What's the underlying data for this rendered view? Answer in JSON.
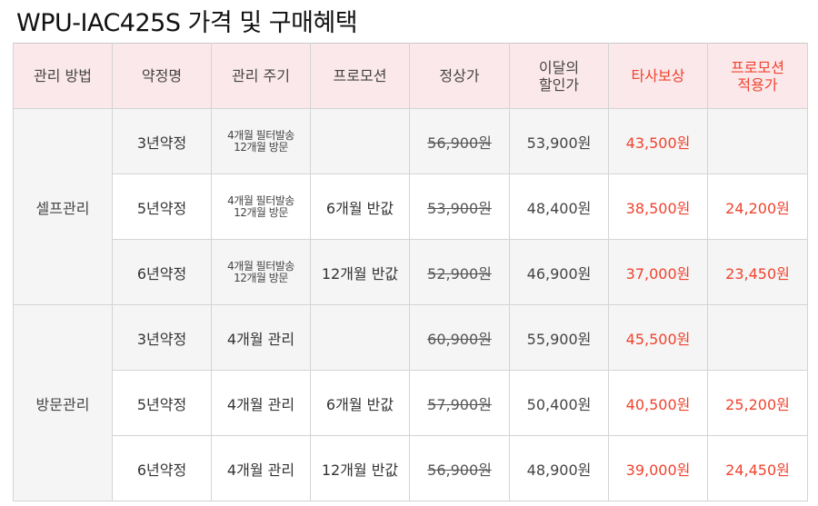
{
  "title": "WPU-IAC425S 가격 및 구매혜택",
  "colors": {
    "accent_red": "#f0432f",
    "header_bg": "#fbe8ea",
    "row_alt_bg": "#f5f5f5"
  },
  "headers": [
    {
      "lines": [
        "관리 방법"
      ]
    },
    {
      "lines": [
        "약정명"
      ]
    },
    {
      "lines": [
        "관리 주기"
      ]
    },
    {
      "lines": [
        "프로모션"
      ]
    },
    {
      "lines": [
        "정상가"
      ]
    },
    {
      "lines": [
        "이달의",
        "할인가"
      ]
    },
    {
      "lines": [
        "타사보상"
      ]
    },
    {
      "lines": [
        "프로모션",
        "적용가"
      ]
    }
  ],
  "groups": [
    {
      "method": "셀프관리",
      "rows": [
        {
          "contract": "3년약정",
          "cycle": [
            "4개월 필터발송",
            "12개월 방문"
          ],
          "promo": "",
          "original": "56,900원",
          "discount": "53,900원",
          "competitor": "43,500원",
          "promo_price": ""
        },
        {
          "contract": "5년약정",
          "cycle": [
            "4개월 필터발송",
            "12개월 방문"
          ],
          "promo": "6개월 반값",
          "original": "53,900원",
          "discount": "48,400원",
          "competitor": "38,500원",
          "promo_price": "24,200원"
        },
        {
          "contract": "6년약정",
          "cycle": [
            "4개월 필터발송",
            "12개월 방문"
          ],
          "promo": "12개월 반값",
          "original": "52,900원",
          "discount": "46,900원",
          "competitor": "37,000원",
          "promo_price": "23,450원"
        }
      ]
    },
    {
      "method": "방문관리",
      "rows": [
        {
          "contract": "3년약정",
          "cycle": [
            "4개월 관리"
          ],
          "promo": "",
          "original": "60,900원",
          "discount": "55,900원",
          "competitor": "45,500원",
          "promo_price": ""
        },
        {
          "contract": "5년약정",
          "cycle": [
            "4개월 관리"
          ],
          "promo": "6개월 반값",
          "original": "57,900원",
          "discount": "50,400원",
          "competitor": "40,500원",
          "promo_price": "25,200원"
        },
        {
          "contract": "6년약정",
          "cycle": [
            "4개월 관리"
          ],
          "promo": "12개월 반값",
          "original": "56,900원",
          "discount": "48,900원",
          "competitor": "39,000원",
          "promo_price": "24,450원"
        }
      ]
    }
  ]
}
